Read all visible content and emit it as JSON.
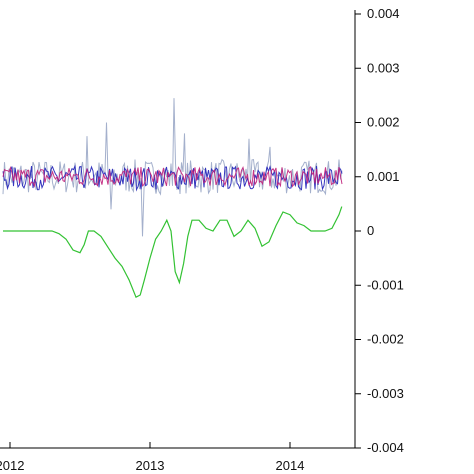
{
  "chart_data": {
    "type": "line",
    "title": "",
    "xlabel": "",
    "ylabel": "",
    "x_ticks": [
      "2012",
      "2013",
      "2014"
    ],
    "x_tick_values": [
      2012.0,
      2013.0,
      2014.0
    ],
    "xlim": [
      2011.95,
      2014.45
    ],
    "y_ticks": [
      "0.004",
      "0.003",
      "0.002",
      "0.001",
      "0",
      "-0.001",
      "-0.002",
      "-0.003",
      "-0.004"
    ],
    "y_tick_values": [
      0.004,
      0.003,
      0.002,
      0.001,
      0,
      -0.001,
      -0.002,
      -0.003,
      -0.004
    ],
    "ylim": [
      -0.004,
      0.004
    ],
    "y_axis_side": "right",
    "grid": false,
    "legend": "none",
    "noise_series": [
      {
        "color": "#9aa7c6",
        "center": 0.001,
        "amplitude": 0.00032,
        "x_start": 2011.95,
        "x_end": 2014.37
      },
      {
        "color": "#2020b8",
        "center": 0.00098,
        "amplitude": 0.00022,
        "x_start": 2011.95,
        "x_end": 2014.37
      },
      {
        "color": "#c0207a",
        "center": 0.001,
        "amplitude": 0.00018,
        "x_start": 2011.95,
        "x_end": 2014.37
      }
    ],
    "spikes": [
      {
        "x": 2012.43,
        "y": 0.0022
      },
      {
        "x": 2012.55,
        "y": 0.00175
      },
      {
        "x": 2012.69,
        "y": 0.002
      },
      {
        "x": 2012.72,
        "y": 0.0004
      },
      {
        "x": 2012.86,
        "y": 0.00175
      },
      {
        "x": 2012.95,
        "y": -0.0001
      },
      {
        "x": 2013.03,
        "y": 0.00205
      },
      {
        "x": 2013.09,
        "y": 0.0019
      },
      {
        "x": 2013.17,
        "y": 0.00245
      },
      {
        "x": 2013.25,
        "y": 0.0018
      },
      {
        "x": 2013.5,
        "y": 0.00165
      },
      {
        "x": 2013.71,
        "y": 0.0017
      },
      {
        "x": 2013.86,
        "y": 0.00155
      }
    ],
    "smooth_series": {
      "color": "#33c233",
      "x": [
        2011.95,
        2012.0,
        2012.05,
        2012.1,
        2012.15,
        2012.2,
        2012.25,
        2012.3,
        2012.35,
        2012.4,
        2012.45,
        2012.5,
        2012.53,
        2012.56,
        2012.6,
        2012.65,
        2012.7,
        2012.75,
        2012.8,
        2012.85,
        2012.9,
        2012.93,
        2012.96,
        2013.0,
        2013.04,
        2013.08,
        2013.12,
        2013.15,
        2013.18,
        2013.21,
        2013.24,
        2013.27,
        2013.3,
        2013.35,
        2013.4,
        2013.45,
        2013.5,
        2013.55,
        2013.6,
        2013.65,
        2013.7,
        2013.75,
        2013.8,
        2013.85,
        2013.9,
        2013.95,
        2014.0,
        2014.05,
        2014.1,
        2014.15,
        2014.2,
        2014.25,
        2014.3,
        2014.35,
        2014.37
      ],
      "y": [
        0.0,
        0.0,
        0.0,
        0.0,
        0.0,
        0.0,
        0.0,
        0.0,
        -5e-05,
        -0.00015,
        -0.00035,
        -0.0004,
        -0.00025,
        0.0,
        0.0,
        -0.0001,
        -0.0003,
        -0.0005,
        -0.00065,
        -0.0009,
        -0.00122,
        -0.00118,
        -0.0009,
        -0.0005,
        -0.00015,
        0.0,
        0.0002,
        0.0,
        -0.00075,
        -0.00095,
        -0.0006,
        -0.0001,
        0.0002,
        0.0002,
        5e-05,
        0.0,
        0.0002,
        0.0002,
        -0.0001,
        0.0,
        0.0002,
        5e-05,
        -0.00028,
        -0.0002,
        0.0001,
        0.00035,
        0.0003,
        0.00015,
        0.0001,
        0.0,
        0.0,
        0.0,
        5e-05,
        0.0003,
        0.00045
      ]
    }
  }
}
